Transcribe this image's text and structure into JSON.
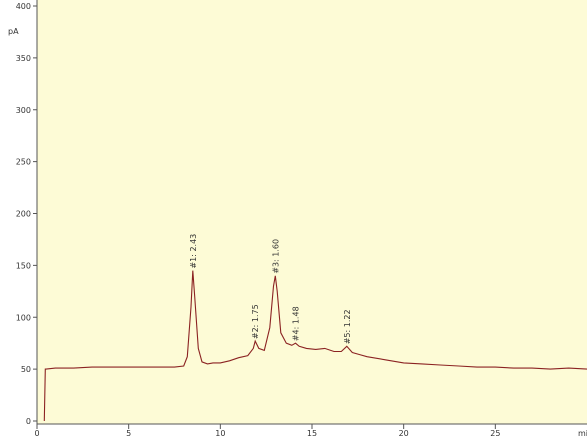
{
  "chart_data": {
    "type": "line",
    "ylabel": "pA",
    "xlabel": "mi",
    "x": [
      0.4,
      0.45,
      0.5,
      1,
      2,
      3,
      4,
      5,
      6,
      7,
      7.5,
      8,
      8.2,
      8.4,
      8.5,
      8.6,
      8.8,
      9.0,
      9.3,
      9.6,
      10,
      10.5,
      11,
      11.5,
      11.8,
      11.9,
      12.1,
      12.4,
      12.7,
      12.9,
      13.0,
      13.1,
      13.3,
      13.6,
      13.9,
      14.1,
      14.3,
      14.7,
      15.2,
      15.7,
      16.2,
      16.6,
      16.9,
      17.2,
      17.6,
      18,
      19,
      20,
      21,
      22,
      23,
      24,
      25,
      26,
      27,
      28,
      29,
      30
    ],
    "series": [
      {
        "color": "#8b2222",
        "values": [
          0,
          50,
          50,
          51,
          51,
          52,
          52,
          52,
          52,
          52,
          52,
          53,
          62,
          110,
          145,
          120,
          70,
          57,
          55,
          56,
          56,
          58,
          61,
          63,
          70,
          77,
          70,
          68,
          90,
          130,
          140,
          125,
          85,
          75,
          73,
          75,
          72,
          70,
          69,
          70,
          67,
          67,
          72,
          66,
          64,
          62,
          59,
          56,
          55,
          54,
          53,
          52,
          52,
          51,
          51,
          50,
          51,
          50
        ]
      }
    ],
    "annotations": [
      {
        "text": "#1: 2.43",
        "x": 8.5,
        "y": 145
      },
      {
        "text": "#2: 1.75",
        "x": 11.9,
        "y": 77
      },
      {
        "text": "#3: 1.60",
        "x": 13.0,
        "y": 140
      },
      {
        "text": "#4: 1.48",
        "x": 14.1,
        "y": 75
      },
      {
        "text": "#5: 1.22",
        "x": 16.9,
        "y": 72
      }
    ],
    "xlim": [
      0,
      30
    ],
    "ylim": [
      0,
      400
    ],
    "xticks": [
      0,
      5,
      10,
      15,
      20,
      25
    ],
    "yticks": [
      0,
      50,
      100,
      150,
      200,
      250,
      300,
      350,
      400
    ]
  }
}
